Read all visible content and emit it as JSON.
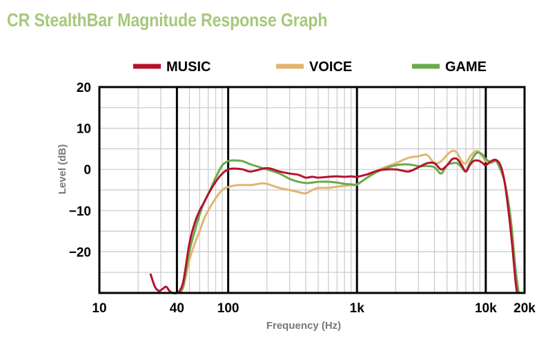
{
  "title": "CR StealthBar Magnitude Response Graph",
  "colors": {
    "title": "#a6c97a",
    "grid": "#c8c8c8",
    "decade": "#000000"
  },
  "chart_data": {
    "type": "line",
    "title": "CR StealthBar Magnitude Response Graph",
    "xlabel": "Frequency (Hz)",
    "ylabel": "Level (dB)",
    "x_scale": "log",
    "xlim": [
      10,
      20000
    ],
    "ylim": [
      -30,
      20
    ],
    "grid": true,
    "legend_position": "top",
    "x_ticks": [
      {
        "value": 10,
        "label": "10"
      },
      {
        "value": 40,
        "label": "40"
      },
      {
        "value": 100,
        "label": "100"
      },
      {
        "value": 1000,
        "label": "1k"
      },
      {
        "value": 10000,
        "label": "10k"
      },
      {
        "value": 20000,
        "label": "20k"
      }
    ],
    "x_major_lines": [
      40,
      100,
      1000,
      10000
    ],
    "y_ticks": [
      {
        "value": 20,
        "label": "20"
      },
      {
        "value": 10,
        "label": "10"
      },
      {
        "value": 0,
        "label": "0"
      },
      {
        "value": -10,
        "label": "−10"
      },
      {
        "value": -20,
        "label": "−20"
      }
    ],
    "series": [
      {
        "name": "VOICE",
        "color": "#e2b46e",
        "points": [
          [
            42,
            -30
          ],
          [
            45,
            -28.5
          ],
          [
            50,
            -22
          ],
          [
            55,
            -18
          ],
          [
            60,
            -15
          ],
          [
            65,
            -12
          ],
          [
            70,
            -10
          ],
          [
            80,
            -7
          ],
          [
            90,
            -5
          ],
          [
            100,
            -4.3
          ],
          [
            120,
            -3.8
          ],
          [
            150,
            -3.8
          ],
          [
            180,
            -3.4
          ],
          [
            200,
            -3.5
          ],
          [
            250,
            -4.5
          ],
          [
            300,
            -5
          ],
          [
            350,
            -5.5
          ],
          [
            400,
            -5.8
          ],
          [
            450,
            -5
          ],
          [
            500,
            -4.5
          ],
          [
            600,
            -4.5
          ],
          [
            700,
            -4.2
          ],
          [
            800,
            -4
          ],
          [
            900,
            -3.8
          ],
          [
            1000,
            -3.7
          ],
          [
            1200,
            -2
          ],
          [
            1500,
            0
          ],
          [
            2000,
            1.5
          ],
          [
            2500,
            2.8
          ],
          [
            3000,
            3.2
          ],
          [
            3500,
            3.5
          ],
          [
            4000,
            1.5
          ],
          [
            4500,
            2
          ],
          [
            5000,
            3.5
          ],
          [
            5500,
            4.5
          ],
          [
            6000,
            4
          ],
          [
            6500,
            2
          ],
          [
            7000,
            1.5
          ],
          [
            7500,
            3
          ],
          [
            8000,
            4
          ],
          [
            8500,
            4.5
          ],
          [
            9000,
            4
          ],
          [
            9500,
            3
          ],
          [
            10000,
            2
          ],
          [
            11000,
            1.5
          ],
          [
            12000,
            2
          ],
          [
            13000,
            0
          ],
          [
            14000,
            -3
          ],
          [
            15000,
            -8
          ],
          [
            16000,
            -15
          ],
          [
            17000,
            -24
          ],
          [
            18000,
            -30
          ]
        ]
      },
      {
        "name": "GAME",
        "color": "#6aaa4a",
        "points": [
          [
            42,
            -30
          ],
          [
            45,
            -28
          ],
          [
            50,
            -20
          ],
          [
            55,
            -15
          ],
          [
            60,
            -11
          ],
          [
            65,
            -8
          ],
          [
            70,
            -6
          ],
          [
            80,
            -2
          ],
          [
            90,
            1
          ],
          [
            100,
            2
          ],
          [
            110,
            2.2
          ],
          [
            130,
            2
          ],
          [
            150,
            1.2
          ],
          [
            200,
            0
          ],
          [
            250,
            -1
          ],
          [
            300,
            -2.3
          ],
          [
            350,
            -3
          ],
          [
            400,
            -3.3
          ],
          [
            450,
            -3.2
          ],
          [
            500,
            -3
          ],
          [
            600,
            -3
          ],
          [
            700,
            -3.2
          ],
          [
            800,
            -3.5
          ],
          [
            900,
            -3.6
          ],
          [
            1000,
            -3.6
          ],
          [
            1200,
            -2
          ],
          [
            1500,
            -0.3
          ],
          [
            2000,
            1
          ],
          [
            2500,
            1.2
          ],
          [
            3000,
            0.8
          ],
          [
            3500,
            0.8
          ],
          [
            4000,
            0.5
          ],
          [
            4500,
            -1
          ],
          [
            5000,
            1
          ],
          [
            5500,
            1.5
          ],
          [
            6000,
            1.5
          ],
          [
            6500,
            0.5
          ],
          [
            7000,
            -0.5
          ],
          [
            7500,
            1.5
          ],
          [
            8000,
            3
          ],
          [
            8500,
            4
          ],
          [
            9000,
            4
          ],
          [
            9500,
            3.5
          ],
          [
            10000,
            2.5
          ],
          [
            11000,
            1.8
          ],
          [
            12000,
            2
          ],
          [
            13000,
            0
          ],
          [
            14000,
            -3
          ],
          [
            15000,
            -8
          ],
          [
            16000,
            -15
          ],
          [
            17000,
            -24
          ],
          [
            18000,
            -30
          ]
        ]
      },
      {
        "name": "MUSIC",
        "color": "#b5122e",
        "points": [
          [
            25,
            -25.5
          ],
          [
            27,
            -28.5
          ],
          [
            29,
            -29.5
          ],
          [
            31,
            -29
          ],
          [
            33,
            -28.5
          ],
          [
            35,
            -29.5
          ],
          [
            37,
            -30
          ],
          [
            40,
            -30
          ],
          [
            42,
            -29.5
          ],
          [
            45,
            -27
          ],
          [
            50,
            -18
          ],
          [
            55,
            -13
          ],
          [
            60,
            -10
          ],
          [
            65,
            -8
          ],
          [
            70,
            -6
          ],
          [
            80,
            -3
          ],
          [
            90,
            -1
          ],
          [
            100,
            0
          ],
          [
            110,
            0.2
          ],
          [
            130,
            0
          ],
          [
            150,
            -0.5
          ],
          [
            200,
            0.3
          ],
          [
            250,
            -0.5
          ],
          [
            300,
            -1
          ],
          [
            350,
            -1.3
          ],
          [
            400,
            -2
          ],
          [
            450,
            -1.8
          ],
          [
            500,
            -2
          ],
          [
            600,
            -1.8
          ],
          [
            700,
            -1.7
          ],
          [
            800,
            -1.8
          ],
          [
            900,
            -1.7
          ],
          [
            1000,
            -1.8
          ],
          [
            1200,
            -1.2
          ],
          [
            1500,
            -0.2
          ],
          [
            2000,
            0
          ],
          [
            2500,
            -0.5
          ],
          [
            3000,
            0.5
          ],
          [
            3500,
            1.5
          ],
          [
            4000,
            1.5
          ],
          [
            4500,
            0
          ],
          [
            5000,
            1
          ],
          [
            5500,
            2.5
          ],
          [
            6000,
            2.5
          ],
          [
            6500,
            1
          ],
          [
            7000,
            -0.5
          ],
          [
            7500,
            1
          ],
          [
            8000,
            2
          ],
          [
            8500,
            2.2
          ],
          [
            9000,
            2
          ],
          [
            9500,
            1.5
          ],
          [
            10000,
            1
          ],
          [
            11000,
            2
          ],
          [
            12000,
            2.3
          ],
          [
            13000,
            1
          ],
          [
            14000,
            -3
          ],
          [
            15000,
            -10
          ],
          [
            16000,
            -18
          ],
          [
            17000,
            -27
          ],
          [
            17500,
            -30
          ]
        ]
      }
    ],
    "legend": [
      {
        "name": "MUSIC",
        "color": "#b5122e"
      },
      {
        "name": "VOICE",
        "color": "#e2b46e"
      },
      {
        "name": "GAME",
        "color": "#6aaa4a"
      }
    ]
  }
}
